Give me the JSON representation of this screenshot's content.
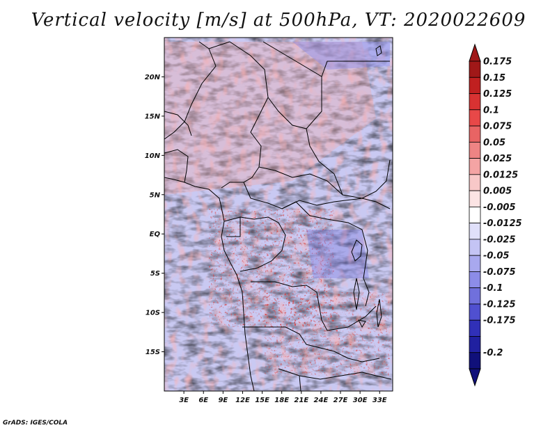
{
  "title": "Vertical velocity [m/s] at 500hPa, VT: 2020022609",
  "credit": "GrADS: IGES/COLA",
  "map": {
    "lon_range": [
      0,
      35
    ],
    "lat_range": [
      -20,
      25
    ],
    "lat_ticks": [
      {
        "label": "20N",
        "value": 20
      },
      {
        "label": "15N",
        "value": 15
      },
      {
        "label": "10N",
        "value": 10
      },
      {
        "label": "5N",
        "value": 5
      },
      {
        "label": "EQ",
        "value": 0
      },
      {
        "label": "5S",
        "value": -5
      },
      {
        "label": "10S",
        "value": -10
      },
      {
        "label": "15S",
        "value": -15
      }
    ],
    "lon_ticks": [
      {
        "label": "3E",
        "value": 3
      },
      {
        "label": "6E",
        "value": 6
      },
      {
        "label": "9E",
        "value": 9
      },
      {
        "label": "12E",
        "value": 12
      },
      {
        "label": "15E",
        "value": 15
      },
      {
        "label": "18E",
        "value": 18
      },
      {
        "label": "21E",
        "value": 21
      },
      {
        "label": "24E",
        "value": 24
      },
      {
        "label": "27E",
        "value": 27
      },
      {
        "label": "30E",
        "value": 30
      },
      {
        "label": "33E",
        "value": 33
      }
    ]
  },
  "colorbar": {
    "labels": [
      "0.175",
      "0.15",
      "0.125",
      "0.1",
      "0.075",
      "0.05",
      "0.025",
      "0.0125",
      "0.005",
      "-0.005",
      "-0.0125",
      "-0.025",
      "-0.05",
      "-0.075",
      "-0.1",
      "-0.125",
      "-0.175",
      "-0.2"
    ],
    "colors": [
      "#a01818",
      "#c02020",
      "#d83232",
      "#e84848",
      "#e86464",
      "#ee8484",
      "#f4a4a4",
      "#f8c8c8",
      "#fce4e4",
      "#ffffff",
      "#e0e0fa",
      "#c4c4f4",
      "#a8a8ee",
      "#8c8ce8",
      "#7070dc",
      "#5050d0",
      "#3030b8",
      "#2020a0",
      "#10107a"
    ],
    "top_arrow_color": "#a01818",
    "bottom_arrow_color": "#10107a"
  }
}
